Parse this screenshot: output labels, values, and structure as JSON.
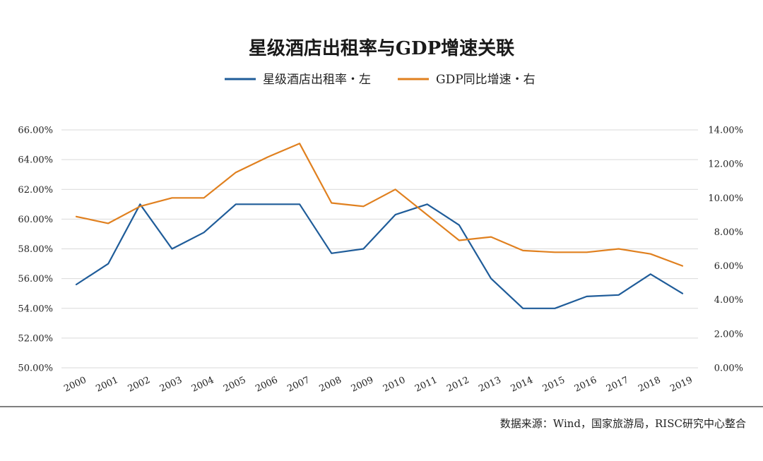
{
  "chart_data": {
    "type": "line",
    "title": "星级酒店出租率与GDP增速关联",
    "categories": [
      "2000",
      "2001",
      "2002",
      "2003",
      "2004",
      "2005",
      "2006",
      "2007",
      "2008",
      "2009",
      "2010",
      "2011",
      "2012",
      "2013",
      "2014",
      "2015",
      "2016",
      "2017",
      "2018",
      "2019"
    ],
    "series": [
      {
        "name": "星级酒店出租率・左",
        "axis": "left",
        "color": "#1f5c99",
        "values": [
          55.6,
          57.0,
          61.0,
          58.0,
          59.1,
          61.0,
          61.0,
          61.0,
          57.7,
          58.0,
          60.3,
          61.0,
          59.6,
          56.0,
          54.0,
          54.0,
          54.8,
          54.9,
          56.3,
          55.0
        ]
      },
      {
        "name": "GDP同比增速・右",
        "axis": "right",
        "color": "#e0801f",
        "values": [
          8.9,
          8.5,
          9.5,
          10.0,
          10.0,
          11.5,
          12.4,
          13.2,
          9.7,
          9.5,
          10.5,
          9.0,
          7.5,
          7.7,
          6.9,
          6.8,
          6.8,
          7.0,
          6.7,
          6.0
        ]
      }
    ],
    "left_axis": {
      "ylim": [
        50,
        66
      ],
      "ticks": [
        "50.00%",
        "52.00%",
        "54.00%",
        "56.00%",
        "58.00%",
        "60.00%",
        "62.00%",
        "64.00%",
        "66.00%"
      ]
    },
    "right_axis": {
      "ylim": [
        0,
        14
      ],
      "ticks": [
        "0.00%",
        "2.00%",
        "4.00%",
        "6.00%",
        "8.00%",
        "10.00%",
        "12.00%",
        "14.00%"
      ]
    },
    "legend_position": "top-center",
    "grid": true,
    "source": "数据来源：Wind，国家旅游局，RISC研究中心整合"
  }
}
